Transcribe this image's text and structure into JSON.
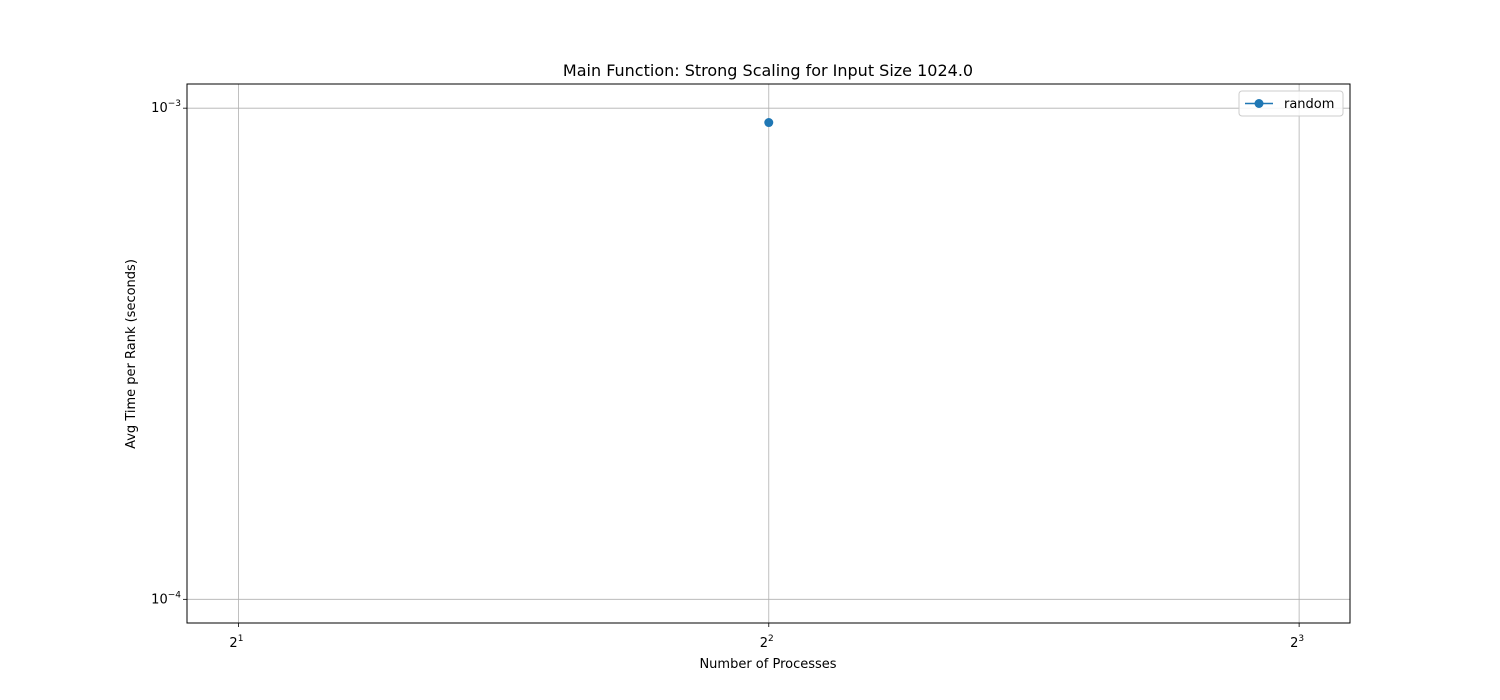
{
  "chart_data": {
    "type": "line",
    "title": "Main Function: Strong Scaling for Input Size 1024.0",
    "xlabel": "Number of Processes",
    "ylabel": "Avg Time per Rank (seconds)",
    "x_scale": "log2",
    "y_scale": "log10",
    "xlim": [
      1.87,
      8.55
    ],
    "ylim": [
      8.95e-05,
      0.00112
    ],
    "x_ticks": [
      {
        "value": 2,
        "base": "2",
        "exp": "1"
      },
      {
        "value": 4,
        "base": "2",
        "exp": "2"
      },
      {
        "value": 8,
        "base": "2",
        "exp": "3"
      }
    ],
    "y_ticks": [
      {
        "value": 0.0001,
        "base": "10",
        "exp": "−4"
      },
      {
        "value": 0.001,
        "base": "10",
        "exp": "−3"
      }
    ],
    "grid": true,
    "legend_position": "top-right",
    "series": [
      {
        "name": "random",
        "color": "#1f77b4",
        "marker": "circle",
        "x": [
          4
        ],
        "y": [
          0.000935
        ]
      }
    ]
  }
}
